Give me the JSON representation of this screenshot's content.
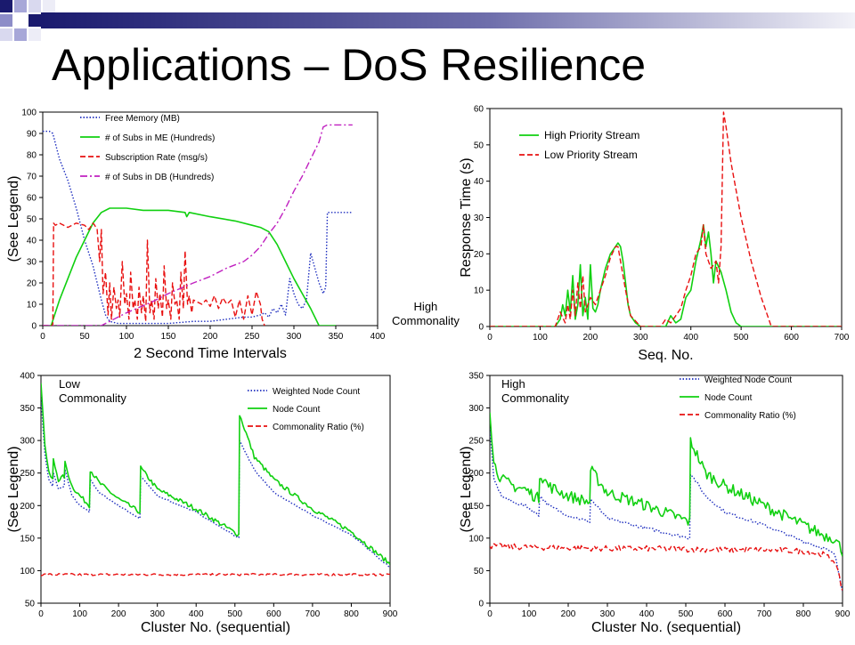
{
  "slide": {
    "title": "Applications – DoS Resilience"
  },
  "annotations": {
    "p2_label": "High\nCommonality",
    "p3_label": "Low\nCommonality",
    "p4_label": "High\nCommonality"
  },
  "chart_data": [
    {
      "type": "line",
      "title": "",
      "xlabel": "2 Second Time Intervals",
      "ylabel": "(See Legend)",
      "xlim": [
        0,
        400
      ],
      "ylim": [
        0,
        100
      ],
      "xticks": [
        0,
        50,
        100,
        150,
        200,
        250,
        300,
        350,
        400
      ],
      "yticks": [
        0,
        10,
        20,
        30,
        40,
        50,
        60,
        70,
        80,
        90,
        100
      ],
      "grid": false,
      "legend_position": "top-left",
      "series": [
        {
          "name": "Free Memory (MB)",
          "color": "#1f2fbf",
          "dash": "dotted",
          "x": [
            0,
            8,
            12,
            20,
            30,
            40,
            50,
            60,
            65,
            70,
            75,
            80,
            90,
            100,
            120,
            150,
            180,
            200,
            220,
            240,
            250,
            260,
            265,
            270,
            275,
            280,
            285,
            290,
            295,
            300,
            305,
            310,
            315,
            320,
            325,
            330,
            335,
            338,
            340,
            345,
            350,
            360,
            370
          ],
          "y": [
            91,
            91,
            90,
            78,
            68,
            55,
            40,
            28,
            20,
            12,
            5,
            2,
            1,
            1,
            1,
            1,
            2,
            2,
            3,
            4,
            4,
            5,
            6,
            4,
            8,
            6,
            10,
            5,
            22,
            15,
            10,
            8,
            12,
            34,
            27,
            20,
            15,
            18,
            53,
            53,
            53,
            53,
            53
          ]
        },
        {
          "name": "# of Subs in ME (Hundreds)",
          "color": "#10d010",
          "dash": "solid",
          "x": [
            0,
            10,
            20,
            30,
            40,
            50,
            60,
            70,
            80,
            85,
            90,
            100,
            120,
            150,
            170,
            172,
            175,
            200,
            230,
            250,
            260,
            270,
            280,
            290,
            300,
            310,
            320,
            330,
            340,
            350
          ],
          "y": [
            0,
            0,
            12,
            22,
            32,
            40,
            48,
            53,
            55,
            55,
            55,
            55,
            54,
            54,
            53,
            51,
            53,
            51,
            49,
            47,
            46,
            44,
            38,
            30,
            22,
            15,
            8,
            0,
            0,
            0
          ]
        },
        {
          "name": "Subscription Rate (msg/s)",
          "color": "#e81010",
          "dash": "dashed",
          "x": [
            0,
            12,
            13,
            15,
            20,
            30,
            40,
            50,
            55,
            60,
            62,
            65,
            68,
            70,
            72,
            75,
            78,
            80,
            82,
            85,
            88,
            90,
            92,
            95,
            98,
            100,
            103,
            105,
            108,
            110,
            113,
            115,
            118,
            120,
            123,
            125,
            128,
            130,
            133,
            135,
            138,
            140,
            143,
            145,
            148,
            150,
            153,
            155,
            158,
            160,
            163,
            165,
            168,
            170,
            173,
            175,
            178,
            180,
            185,
            190,
            195,
            200,
            205,
            210,
            215,
            220,
            225,
            230,
            235,
            240,
            245,
            250,
            255,
            260,
            262,
            265
          ],
          "y": [
            0,
            0,
            48,
            47,
            48,
            46,
            48,
            47,
            45,
            48,
            47,
            45,
            30,
            45,
            15,
            25,
            5,
            20,
            3,
            18,
            8,
            12,
            4,
            30,
            10,
            15,
            3,
            25,
            8,
            12,
            3,
            18,
            6,
            14,
            2,
            40,
            6,
            12,
            3,
            22,
            8,
            15,
            4,
            28,
            8,
            12,
            3,
            20,
            10,
            12,
            3,
            25,
            8,
            35,
            10,
            14,
            6,
            12,
            11,
            10,
            12,
            9,
            14,
            8,
            13,
            10,
            12,
            4,
            12,
            3,
            14,
            5,
            16,
            10,
            3,
            0
          ]
        },
        {
          "name": "# of Subs in DB (Hundreds)",
          "color": "#c020c0",
          "dash": "dashdot",
          "x": [
            0,
            70,
            80,
            100,
            130,
            150,
            180,
            200,
            220,
            240,
            250,
            260,
            270,
            280,
            290,
            300,
            310,
            320,
            330,
            335,
            340,
            345,
            350,
            360,
            370
          ],
          "y": [
            0,
            0,
            2,
            6,
            11,
            15,
            20,
            23,
            27,
            30,
            33,
            37,
            43,
            48,
            55,
            63,
            70,
            78,
            86,
            93,
            94,
            94,
            94,
            94,
            94
          ]
        }
      ]
    },
    {
      "type": "line",
      "title": "",
      "xlabel": "Seq. No.",
      "ylabel": "Response Time (s)",
      "xlim": [
        0,
        700
      ],
      "ylim": [
        0,
        60
      ],
      "xticks": [
        0,
        100,
        200,
        300,
        400,
        500,
        600,
        700
      ],
      "yticks": [
        0,
        10,
        20,
        30,
        40,
        50,
        60
      ],
      "grid": false,
      "legend_position": "top-left",
      "series": [
        {
          "name": "High Priority Stream",
          "color": "#10d010",
          "dash": "solid",
          "x": [
            0,
            100,
            130,
            140,
            145,
            150,
            155,
            160,
            165,
            170,
            175,
            180,
            185,
            190,
            195,
            200,
            205,
            210,
            215,
            220,
            230,
            240,
            250,
            255,
            260,
            265,
            270,
            275,
            280,
            290,
            300,
            320,
            340,
            350,
            360,
            370,
            380,
            390,
            400,
            410,
            420,
            425,
            430,
            435,
            440,
            445,
            450,
            460,
            470,
            480,
            490,
            500,
            520,
            550,
            600,
            650,
            700
          ],
          "y": [
            0,
            0,
            0,
            2,
            6,
            3,
            10,
            4,
            14,
            2,
            6,
            17,
            3,
            8,
            2,
            17,
            5,
            4,
            6,
            10,
            16,
            20,
            22,
            23,
            22,
            18,
            12,
            6,
            3,
            1,
            0,
            0,
            0,
            0,
            3,
            1,
            2,
            8,
            10,
            18,
            24,
            28,
            22,
            26,
            20,
            12,
            18,
            15,
            10,
            4,
            1,
            0,
            0,
            0,
            0,
            0,
            0
          ]
        },
        {
          "name": "Low Priority Stream",
          "color": "#e81010",
          "dash": "dashed",
          "x": [
            0,
            100,
            130,
            140,
            150,
            155,
            160,
            165,
            170,
            175,
            180,
            185,
            190,
            200,
            210,
            220,
            230,
            240,
            250,
            255,
            260,
            270,
            280,
            300,
            320,
            340,
            350,
            360,
            370,
            380,
            390,
            400,
            410,
            420,
            425,
            430,
            440,
            450,
            455,
            460,
            465,
            470,
            480,
            500,
            520,
            540,
            555,
            560,
            600,
            700
          ],
          "y": [
            0,
            0,
            0,
            4,
            1,
            6,
            2,
            10,
            3,
            12,
            5,
            14,
            4,
            8,
            6,
            10,
            14,
            19,
            22,
            22,
            18,
            10,
            3,
            0,
            0,
            0,
            2,
            1,
            3,
            5,
            10,
            14,
            20,
            22,
            28,
            20,
            16,
            18,
            12,
            22,
            59,
            55,
            45,
            30,
            18,
            8,
            2,
            0,
            0,
            0
          ]
        }
      ]
    },
    {
      "type": "line",
      "title": "",
      "xlabel": "Cluster No. (sequential)",
      "ylabel": "(See Legend)",
      "xlim": [
        0,
        900
      ],
      "ylim": [
        50,
        400
      ],
      "xticks": [
        0,
        100,
        200,
        300,
        400,
        500,
        600,
        700,
        800,
        900
      ],
      "yticks": [
        50,
        100,
        150,
        200,
        250,
        300,
        350,
        400
      ],
      "grid": false,
      "legend_position": "top-right",
      "series": [
        {
          "name": "Weighted Node Count",
          "color": "#1f2fbf",
          "dash": "dotted",
          "x": [
            0,
            5,
            10,
            20,
            30,
            32,
            45,
            60,
            62,
            80,
            100,
            125,
            127,
            150,
            200,
            255,
            257,
            300,
            400,
            510,
            512,
            550,
            600,
            700,
            800,
            900
          ],
          "y": [
            370,
            320,
            280,
            240,
            230,
            250,
            225,
            230,
            255,
            215,
            200,
            190,
            240,
            220,
            200,
            180,
            245,
            215,
            190,
            150,
            300,
            255,
            220,
            185,
            155,
            105
          ]
        },
        {
          "name": "Node Count",
          "color": "#10d010",
          "dash": "solid",
          "x": [
            0,
            5,
            10,
            20,
            30,
            32,
            45,
            60,
            62,
            80,
            100,
            125,
            127,
            150,
            200,
            255,
            257,
            300,
            400,
            510,
            512,
            550,
            600,
            700,
            800,
            900
          ],
          "y": [
            390,
            340,
            295,
            250,
            240,
            270,
            240,
            245,
            265,
            230,
            215,
            200,
            255,
            235,
            210,
            190,
            258,
            225,
            195,
            155,
            340,
            275,
            240,
            195,
            160,
            110
          ]
        },
        {
          "name": "Commonality Ratio (%)",
          "color": "#e81010",
          "dash": "dashed",
          "x": [
            0,
            100,
            200,
            300,
            400,
            500,
            600,
            700,
            800,
            900
          ],
          "y": [
            94,
            94,
            94,
            94,
            94,
            94,
            94,
            94,
            94,
            94
          ]
        }
      ]
    },
    {
      "type": "line",
      "title": "",
      "xlabel": "Cluster No. (sequential)",
      "ylabel": "(See Legend)",
      "xlim": [
        0,
        900
      ],
      "ylim": [
        0,
        350
      ],
      "xticks": [
        0,
        100,
        200,
        300,
        400,
        500,
        600,
        700,
        800,
        900
      ],
      "yticks": [
        0,
        50,
        100,
        150,
        200,
        250,
        300,
        350
      ],
      "grid": false,
      "legend_position": "top-right",
      "series": [
        {
          "name": "Weighted Node Count",
          "color": "#1f2fbf",
          "dash": "dotted",
          "x": [
            0,
            10,
            30,
            60,
            90,
            125,
            127,
            150,
            200,
            255,
            257,
            300,
            400,
            510,
            512,
            550,
            600,
            700,
            800,
            850,
            880,
            900
          ],
          "y": [
            270,
            190,
            165,
            155,
            150,
            135,
            165,
            150,
            135,
            125,
            160,
            130,
            115,
            100,
            200,
            165,
            140,
            120,
            95,
            85,
            75,
            20
          ]
        },
        {
          "name": "Node Count",
          "color": "#10d010",
          "dash": "solid",
          "x": [
            0,
            10,
            30,
            60,
            90,
            125,
            127,
            150,
            200,
            255,
            257,
            300,
            400,
            510,
            512,
            550,
            600,
            700,
            800,
            850,
            880,
            900
          ],
          "y": [
            300,
            215,
            190,
            180,
            175,
            160,
            200,
            180,
            165,
            155,
            205,
            170,
            150,
            125,
            250,
            200,
            180,
            150,
            120,
            105,
            100,
            80
          ]
        },
        {
          "name": "Commonality Ratio (%)",
          "color": "#e81010",
          "dash": "dashed",
          "x": [
            0,
            100,
            200,
            300,
            400,
            500,
            600,
            700,
            800,
            850,
            880,
            900
          ],
          "y": [
            88,
            86,
            85,
            84,
            84,
            83,
            82,
            82,
            80,
            75,
            65,
            20
          ]
        }
      ]
    }
  ]
}
